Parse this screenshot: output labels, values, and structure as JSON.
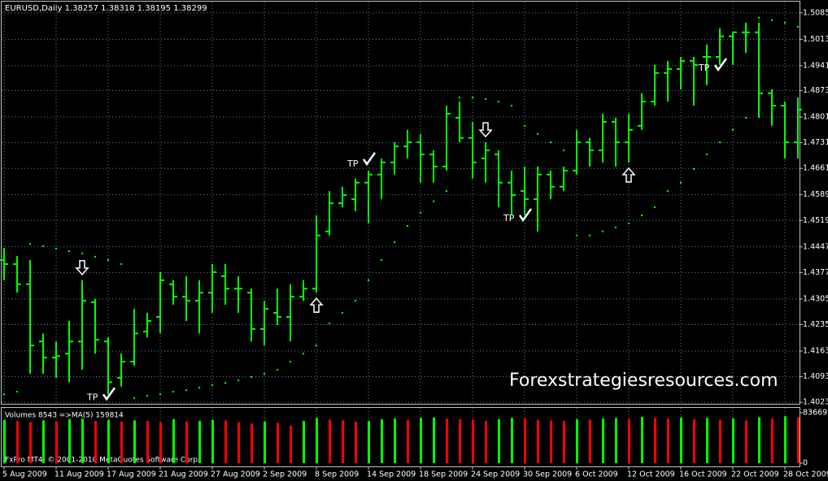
{
  "chart_data": {
    "type": "ohlc",
    "title": "EURUSD,Daily  1.38257 1.38318 1.38195 1.38299",
    "watermark": "Forexstrategiesresources.com",
    "footer": "FxPro MT4, © 2001-2010 MetaQuotes Software Corp.",
    "color": "#00ff00",
    "grid": true,
    "categories": [
      "5 Aug 2009",
      null,
      null,
      null,
      "11 Aug 2009",
      null,
      null,
      null,
      "17 Aug 2009",
      null,
      null,
      null,
      "21 Aug 2009",
      null,
      null,
      null,
      "27 Aug 2009",
      null,
      null,
      null,
      "2 Sep 2009",
      null,
      null,
      null,
      "8 Sep 2009",
      null,
      null,
      null,
      "14 Sep 2009",
      null,
      null,
      null,
      "18 Sep 2009",
      null,
      null,
      null,
      "24 Sep 2009",
      null,
      null,
      null,
      "30 Sep 2009",
      null,
      null,
      null,
      "6 Oct 2009",
      null,
      null,
      null,
      "12 Oct 2009",
      null,
      null,
      null,
      "16 Oct 2009",
      null,
      null,
      null,
      "22 Oct 2009",
      null,
      null,
      null,
      "28 Oct 2009",
      null
    ],
    "open": [
      1.4411,
      1.44,
      1.4345,
      1.4189,
      1.4145,
      1.4156,
      1.4189,
      1.4296,
      1.4189,
      1.409,
      1.4134,
      1.4216,
      1.4256,
      1.4345,
      1.4311,
      1.43,
      1.4322,
      1.4367,
      1.4333,
      1.4322,
      1.4223,
      1.4267,
      1.4256,
      1.4311,
      1.4333,
      1.4489,
      1.4566,
      1.4577,
      1.4622,
      1.4644,
      1.4677,
      1.4721,
      1.4732,
      1.4699,
      1.4666,
      1.4799,
      1.4744,
      1.4688,
      1.4699,
      1.4622,
      1.4599,
      1.4577,
      1.4644,
      1.4611,
      1.4655,
      1.4732,
      1.471,
      1.4788,
      1.4732,
      1.4777,
      1.4843,
      1.4921,
      1.4932,
      1.4954,
      1.4965,
      1.4965,
      1.5021,
      1.5032,
      1.5032,
      1.4866,
      1.4832,
      1.4732
    ],
    "high": [
      1.4444,
      1.4422,
      1.4411,
      1.4211,
      1.4189,
      1.4245,
      1.4356,
      1.4305,
      1.42,
      1.4156,
      1.4278,
      1.4267,
      1.4378,
      1.4356,
      1.4367,
      1.4356,
      1.44,
      1.44,
      1.4367,
      1.4333,
      1.43,
      1.4333,
      1.4345,
      1.4356,
      1.4533,
      1.4599,
      1.4611,
      1.4633,
      1.4655,
      1.4688,
      1.4732,
      1.4766,
      1.4755,
      1.471,
      1.4832,
      1.4843,
      1.4788,
      1.4732,
      1.471,
      1.4655,
      1.4666,
      1.4666,
      1.4655,
      1.4666,
      1.4766,
      1.4744,
      1.481,
      1.4799,
      1.481,
      1.4866,
      1.4943,
      1.4954,
      1.4965,
      1.4965,
      1.4999,
      1.5043,
      1.5032,
      1.5058,
      1.5058,
      1.4877,
      1.4843,
      1.4854
    ],
    "low": [
      1.4356,
      1.4322,
      1.4101,
      1.4101,
      1.409,
      1.4078,
      1.4112,
      1.4156,
      1.4045,
      1.4066,
      1.4123,
      1.42,
      1.4211,
      1.4289,
      1.4245,
      1.4211,
      1.4267,
      1.4289,
      1.4267,
      1.4189,
      1.4178,
      1.4234,
      1.4189,
      1.43,
      1.4322,
      1.4478,
      1.4555,
      1.4544,
      1.4511,
      1.4577,
      1.4644,
      1.4688,
      1.4622,
      1.4622,
      1.4655,
      1.4732,
      1.4633,
      1.4622,
      1.4555,
      1.4533,
      1.4533,
      1.4489,
      1.4577,
      1.4599,
      1.4644,
      1.4666,
      1.4677,
      1.4666,
      1.4677,
      1.4766,
      1.4832,
      1.4843,
      1.4877,
      1.4832,
      1.4888,
      1.4943,
      1.4943,
      1.4976,
      1.4799,
      1.4777,
      1.4688,
      1.4688
    ],
    "close": [
      1.44,
      1.4345,
      1.4178,
      1.4145,
      1.4149,
      1.4189,
      1.43,
      1.4194,
      1.4078,
      1.4134,
      1.4211,
      1.4245,
      1.4356,
      1.4311,
      1.43,
      1.4322,
      1.4378,
      1.4333,
      1.4333,
      1.4223,
      1.4278,
      1.4256,
      1.4311,
      1.4333,
      1.4478,
      1.4566,
      1.4588,
      1.4622,
      1.4644,
      1.4677,
      1.4721,
      1.4732,
      1.4699,
      1.4666,
      1.481,
      1.4744,
      1.4677,
      1.471,
      1.4622,
      1.4588,
      1.4577,
      1.4644,
      1.4611,
      1.4655,
      1.4732,
      1.471,
      1.4788,
      1.4732,
      1.4766,
      1.4843,
      1.4921,
      1.4932,
      1.4954,
      1.4943,
      1.4965,
      1.5021,
      1.5032,
      1.5032,
      1.4866,
      1.4832,
      1.4732,
      1.4821
    ],
    "sar": {
      "color": "#00ff00",
      "values": [
        1.4045,
        1.4052,
        1.4455,
        1.4449,
        1.4442,
        1.4435,
        1.4429,
        1.442,
        1.4411,
        1.44,
        1.4034,
        1.4041,
        1.4045,
        1.4052,
        1.4056,
        1.4063,
        1.407,
        1.4076,
        1.4083,
        1.4092,
        1.4101,
        1.4112,
        1.4134,
        1.4156,
        1.4178,
        1.4238,
        1.4267,
        1.43,
        1.4356,
        1.4411,
        1.446,
        1.4504,
        1.454,
        1.4571,
        1.4599,
        1.4854,
        1.4854,
        1.485,
        1.4843,
        1.4832,
        1.4777,
        1.4755,
        1.4732,
        1.471,
        1.4478,
        1.4478,
        1.4489,
        1.45,
        1.4511,
        1.4533,
        1.4555,
        1.4599,
        1.4622,
        1.4659,
        1.4699,
        1.4732,
        1.4766,
        1.4799,
        1.5072,
        1.5065,
        1.5058,
        1.5047
      ]
    },
    "ylim": [
      1.4019,
      1.5109
    ],
    "yticks": [
      {
        "value": 1.5085,
        "label": "1.50850"
      },
      {
        "value": 1.5013,
        "label": "1.50130"
      },
      {
        "value": 1.4941,
        "label": "1.49410"
      },
      {
        "value": 1.4873,
        "label": "1.48730"
      },
      {
        "value": 1.4801,
        "label": "1.48010"
      },
      {
        "value": 1.4731,
        "label": "1.47310"
      },
      {
        "value": 1.4661,
        "label": "1.46610"
      },
      {
        "value": 1.4589,
        "label": "1.45890"
      },
      {
        "value": 1.4519,
        "label": "1.45190"
      },
      {
        "value": 1.4447,
        "label": "1.44470"
      },
      {
        "value": 1.4377,
        "label": "1.43770"
      },
      {
        "value": 1.4305,
        "label": "1.43050"
      },
      {
        "value": 1.4235,
        "label": "1.42350"
      },
      {
        "value": 1.4163,
        "label": "1.41630"
      },
      {
        "value": 1.4093,
        "label": "1.40930"
      },
      {
        "value": 1.4023,
        "label": "1.40230"
      }
    ],
    "signals": [
      {
        "bar": 6,
        "direction": "down"
      },
      {
        "bar": 24,
        "direction": "up"
      },
      {
        "bar": 37,
        "direction": "down"
      },
      {
        "bar": 48,
        "direction": "up"
      }
    ],
    "take_profits": [
      {
        "bar": 8,
        "label": "TP",
        "side": "low"
      },
      {
        "bar": 28,
        "label": "TP",
        "side": "high"
      },
      {
        "bar": 40,
        "label": "TP",
        "side": "low"
      },
      {
        "bar": 55,
        "label": "TP",
        "side": "low"
      }
    ],
    "volume": {
      "label": "Volumes 8543  =>MA(5) 159814",
      "up_color": "#00ff00",
      "down_color": "#ff0000",
      "values": [
        72000,
        70000,
        68000,
        71000,
        69000,
        73000,
        74000,
        70000,
        72000,
        69000,
        71000,
        70000,
        68000,
        73000,
        69000,
        70000,
        72000,
        71000,
        68000,
        66000,
        69000,
        67000,
        62000,
        70000,
        75000,
        72000,
        71000,
        69000,
        70000,
        73000,
        74000,
        72000,
        75000,
        76000,
        74000,
        73000,
        72000,
        70000,
        73000,
        75000,
        74000,
        72000,
        71000,
        70000,
        73000,
        72000,
        74000,
        75000,
        73000,
        77000,
        75000,
        74000,
        76000,
        73000,
        75000,
        72000,
        74000,
        71000,
        76000,
        74000,
        78000,
        76000
      ],
      "ylim": [
        0,
        83669
      ],
      "yticks": [
        83669,
        0
      ]
    }
  }
}
